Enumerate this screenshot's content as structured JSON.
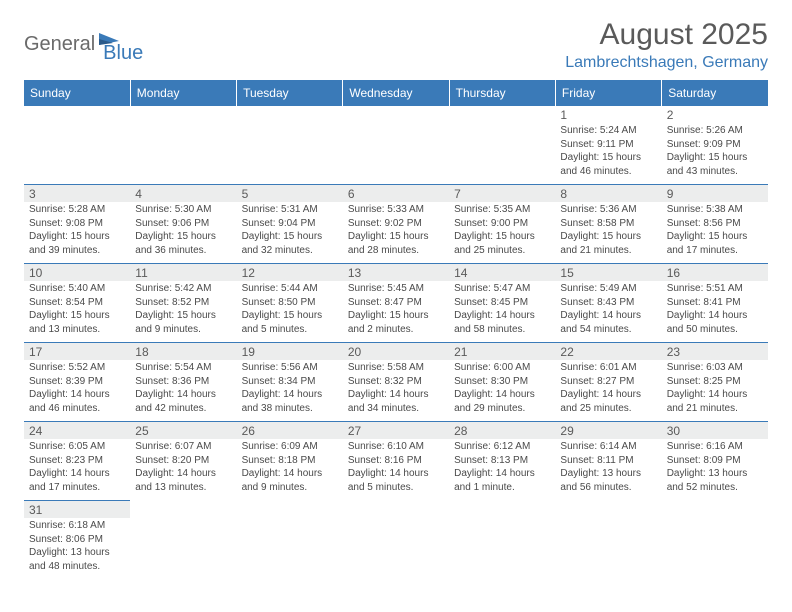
{
  "logo": {
    "general": "General",
    "blue": "Blue"
  },
  "title": "August 2025",
  "location": "Lambrechtshagen, Germany",
  "headers": [
    "Sunday",
    "Monday",
    "Tuesday",
    "Wednesday",
    "Thursday",
    "Friday",
    "Saturday"
  ],
  "colors": {
    "header_bg": "#3a7ab8",
    "header_text": "#ffffff",
    "shaded_bg": "#eceded",
    "border": "#3a7ab8",
    "text": "#4a4a4a",
    "accent": "#3a7ab8"
  },
  "weeks": [
    [
      {
        "n": "",
        "sr": "",
        "ss": "",
        "dl": ""
      },
      {
        "n": "",
        "sr": "",
        "ss": "",
        "dl": ""
      },
      {
        "n": "",
        "sr": "",
        "ss": "",
        "dl": ""
      },
      {
        "n": "",
        "sr": "",
        "ss": "",
        "dl": ""
      },
      {
        "n": "",
        "sr": "",
        "ss": "",
        "dl": ""
      },
      {
        "n": "1",
        "sr": "Sunrise: 5:24 AM",
        "ss": "Sunset: 9:11 PM",
        "dl": "Daylight: 15 hours and 46 minutes."
      },
      {
        "n": "2",
        "sr": "Sunrise: 5:26 AM",
        "ss": "Sunset: 9:09 PM",
        "dl": "Daylight: 15 hours and 43 minutes."
      }
    ],
    [
      {
        "n": "3",
        "sr": "Sunrise: 5:28 AM",
        "ss": "Sunset: 9:08 PM",
        "dl": "Daylight: 15 hours and 39 minutes."
      },
      {
        "n": "4",
        "sr": "Sunrise: 5:30 AM",
        "ss": "Sunset: 9:06 PM",
        "dl": "Daylight: 15 hours and 36 minutes."
      },
      {
        "n": "5",
        "sr": "Sunrise: 5:31 AM",
        "ss": "Sunset: 9:04 PM",
        "dl": "Daylight: 15 hours and 32 minutes."
      },
      {
        "n": "6",
        "sr": "Sunrise: 5:33 AM",
        "ss": "Sunset: 9:02 PM",
        "dl": "Daylight: 15 hours and 28 minutes."
      },
      {
        "n": "7",
        "sr": "Sunrise: 5:35 AM",
        "ss": "Sunset: 9:00 PM",
        "dl": "Daylight: 15 hours and 25 minutes."
      },
      {
        "n": "8",
        "sr": "Sunrise: 5:36 AM",
        "ss": "Sunset: 8:58 PM",
        "dl": "Daylight: 15 hours and 21 minutes."
      },
      {
        "n": "9",
        "sr": "Sunrise: 5:38 AM",
        "ss": "Sunset: 8:56 PM",
        "dl": "Daylight: 15 hours and 17 minutes."
      }
    ],
    [
      {
        "n": "10",
        "sr": "Sunrise: 5:40 AM",
        "ss": "Sunset: 8:54 PM",
        "dl": "Daylight: 15 hours and 13 minutes."
      },
      {
        "n": "11",
        "sr": "Sunrise: 5:42 AM",
        "ss": "Sunset: 8:52 PM",
        "dl": "Daylight: 15 hours and 9 minutes."
      },
      {
        "n": "12",
        "sr": "Sunrise: 5:44 AM",
        "ss": "Sunset: 8:50 PM",
        "dl": "Daylight: 15 hours and 5 minutes."
      },
      {
        "n": "13",
        "sr": "Sunrise: 5:45 AM",
        "ss": "Sunset: 8:47 PM",
        "dl": "Daylight: 15 hours and 2 minutes."
      },
      {
        "n": "14",
        "sr": "Sunrise: 5:47 AM",
        "ss": "Sunset: 8:45 PM",
        "dl": "Daylight: 14 hours and 58 minutes."
      },
      {
        "n": "15",
        "sr": "Sunrise: 5:49 AM",
        "ss": "Sunset: 8:43 PM",
        "dl": "Daylight: 14 hours and 54 minutes."
      },
      {
        "n": "16",
        "sr": "Sunrise: 5:51 AM",
        "ss": "Sunset: 8:41 PM",
        "dl": "Daylight: 14 hours and 50 minutes."
      }
    ],
    [
      {
        "n": "17",
        "sr": "Sunrise: 5:52 AM",
        "ss": "Sunset: 8:39 PM",
        "dl": "Daylight: 14 hours and 46 minutes."
      },
      {
        "n": "18",
        "sr": "Sunrise: 5:54 AM",
        "ss": "Sunset: 8:36 PM",
        "dl": "Daylight: 14 hours and 42 minutes."
      },
      {
        "n": "19",
        "sr": "Sunrise: 5:56 AM",
        "ss": "Sunset: 8:34 PM",
        "dl": "Daylight: 14 hours and 38 minutes."
      },
      {
        "n": "20",
        "sr": "Sunrise: 5:58 AM",
        "ss": "Sunset: 8:32 PM",
        "dl": "Daylight: 14 hours and 34 minutes."
      },
      {
        "n": "21",
        "sr": "Sunrise: 6:00 AM",
        "ss": "Sunset: 8:30 PM",
        "dl": "Daylight: 14 hours and 29 minutes."
      },
      {
        "n": "22",
        "sr": "Sunrise: 6:01 AM",
        "ss": "Sunset: 8:27 PM",
        "dl": "Daylight: 14 hours and 25 minutes."
      },
      {
        "n": "23",
        "sr": "Sunrise: 6:03 AM",
        "ss": "Sunset: 8:25 PM",
        "dl": "Daylight: 14 hours and 21 minutes."
      }
    ],
    [
      {
        "n": "24",
        "sr": "Sunrise: 6:05 AM",
        "ss": "Sunset: 8:23 PM",
        "dl": "Daylight: 14 hours and 17 minutes."
      },
      {
        "n": "25",
        "sr": "Sunrise: 6:07 AM",
        "ss": "Sunset: 8:20 PM",
        "dl": "Daylight: 14 hours and 13 minutes."
      },
      {
        "n": "26",
        "sr": "Sunrise: 6:09 AM",
        "ss": "Sunset: 8:18 PM",
        "dl": "Daylight: 14 hours and 9 minutes."
      },
      {
        "n": "27",
        "sr": "Sunrise: 6:10 AM",
        "ss": "Sunset: 8:16 PM",
        "dl": "Daylight: 14 hours and 5 minutes."
      },
      {
        "n": "28",
        "sr": "Sunrise: 6:12 AM",
        "ss": "Sunset: 8:13 PM",
        "dl": "Daylight: 14 hours and 1 minute."
      },
      {
        "n": "29",
        "sr": "Sunrise: 6:14 AM",
        "ss": "Sunset: 8:11 PM",
        "dl": "Daylight: 13 hours and 56 minutes."
      },
      {
        "n": "30",
        "sr": "Sunrise: 6:16 AM",
        "ss": "Sunset: 8:09 PM",
        "dl": "Daylight: 13 hours and 52 minutes."
      }
    ],
    [
      {
        "n": "31",
        "sr": "Sunrise: 6:18 AM",
        "ss": "Sunset: 8:06 PM",
        "dl": "Daylight: 13 hours and 48 minutes."
      },
      {
        "n": "",
        "sr": "",
        "ss": "",
        "dl": ""
      },
      {
        "n": "",
        "sr": "",
        "ss": "",
        "dl": ""
      },
      {
        "n": "",
        "sr": "",
        "ss": "",
        "dl": ""
      },
      {
        "n": "",
        "sr": "",
        "ss": "",
        "dl": ""
      },
      {
        "n": "",
        "sr": "",
        "ss": "",
        "dl": ""
      },
      {
        "n": "",
        "sr": "",
        "ss": "",
        "dl": ""
      }
    ]
  ]
}
